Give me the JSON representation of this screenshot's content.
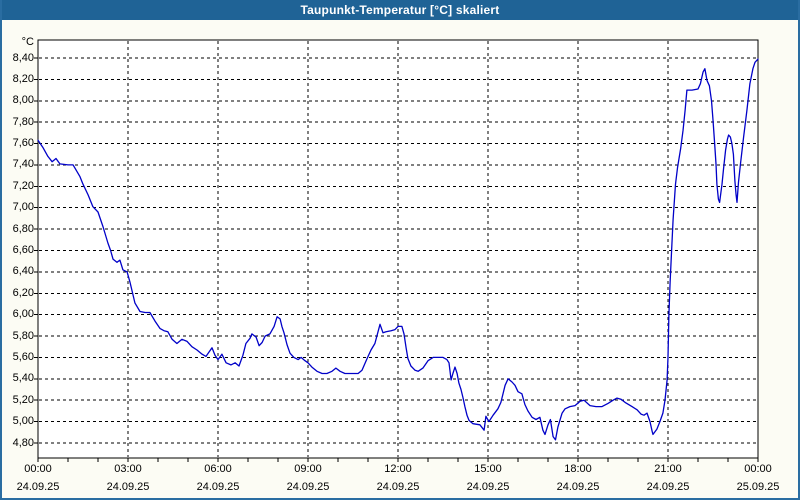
{
  "window": {
    "title": "Taupunkt-Temperatur [°C] skaliert"
  },
  "colors": {
    "titlebar_bg": "#1f6396",
    "titlebar_text": "#ffffff",
    "window_border": "#2a6da1",
    "content_bg": "#fcfcf4",
    "plot_bg": "#ffffff",
    "line": "#0101c8",
    "axis": "#000000",
    "grid": "#000000",
    "label_text": "#000000"
  },
  "chart_data": {
    "type": "line",
    "title": "Taupunkt-Temperatur [°C] skaliert",
    "unit_label": "°C",
    "xlabel": "",
    "ylabel": "°C",
    "ylim": [
      4.8,
      8.4
    ],
    "y_tick_step": 0.2,
    "y_tick_labels": [
      "8,40",
      "8,20",
      "8,00",
      "7,80",
      "7,60",
      "7,40",
      "7,20",
      "7,00",
      "6,80",
      "6,60",
      "6,40",
      "6,20",
      "6,00",
      "5,80",
      "5,60",
      "5,40",
      "5,20",
      "5,00",
      "4,80"
    ],
    "xlim_hours": [
      0,
      24
    ],
    "x_minor_tick_hours": 1,
    "x_major_ticks": [
      {
        "hour": 0,
        "time": "00:00",
        "date": "24.09.25"
      },
      {
        "hour": 3,
        "time": "03:00",
        "date": "24.09.25"
      },
      {
        "hour": 6,
        "time": "06:00",
        "date": "24.09.25"
      },
      {
        "hour": 9,
        "time": "09:00",
        "date": "24.09.25"
      },
      {
        "hour": 12,
        "time": "12:00",
        "date": "24.09.25"
      },
      {
        "hour": 15,
        "time": "15:00",
        "date": "24.09.25"
      },
      {
        "hour": 18,
        "time": "18:00",
        "date": "24.09.25"
      },
      {
        "hour": 21,
        "time": "21:00",
        "date": "24.09.25"
      },
      {
        "hour": 24,
        "time": "00:00",
        "date": "25.09.25"
      }
    ],
    "grid": "dashed",
    "legend": "none",
    "series": [
      {
        "name": "Taupunkt-Temperatur",
        "points": [
          [
            0.0,
            7.63
          ],
          [
            0.17,
            7.56
          ],
          [
            0.33,
            7.48
          ],
          [
            0.47,
            7.43
          ],
          [
            0.6,
            7.46
          ],
          [
            0.73,
            7.41
          ],
          [
            1.0,
            7.4
          ],
          [
            1.17,
            7.4
          ],
          [
            1.4,
            7.29
          ],
          [
            1.5,
            7.22
          ],
          [
            1.67,
            7.12
          ],
          [
            1.83,
            7.01
          ],
          [
            2.0,
            6.96
          ],
          [
            2.17,
            6.82
          ],
          [
            2.33,
            6.67
          ],
          [
            2.42,
            6.6
          ],
          [
            2.5,
            6.52
          ],
          [
            2.63,
            6.49
          ],
          [
            2.73,
            6.51
          ],
          [
            2.83,
            6.42
          ],
          [
            2.97,
            6.4
          ],
          [
            3.07,
            6.3
          ],
          [
            3.23,
            6.11
          ],
          [
            3.4,
            6.03
          ],
          [
            3.57,
            6.02
          ],
          [
            3.73,
            6.02
          ],
          [
            3.9,
            5.94
          ],
          [
            4.07,
            5.87
          ],
          [
            4.2,
            5.85
          ],
          [
            4.33,
            5.84
          ],
          [
            4.47,
            5.77
          ],
          [
            4.63,
            5.73
          ],
          [
            4.8,
            5.77
          ],
          [
            4.97,
            5.75
          ],
          [
            5.13,
            5.7
          ],
          [
            5.3,
            5.67
          ],
          [
            5.47,
            5.63
          ],
          [
            5.6,
            5.61
          ],
          [
            5.8,
            5.69
          ],
          [
            5.9,
            5.62
          ],
          [
            6.0,
            5.58
          ],
          [
            6.13,
            5.63
          ],
          [
            6.27,
            5.55
          ],
          [
            6.43,
            5.53
          ],
          [
            6.57,
            5.55
          ],
          [
            6.7,
            5.52
          ],
          [
            6.83,
            5.62
          ],
          [
            6.93,
            5.73
          ],
          [
            7.07,
            5.78
          ],
          [
            7.13,
            5.82
          ],
          [
            7.27,
            5.79
          ],
          [
            7.37,
            5.71
          ],
          [
            7.47,
            5.74
          ],
          [
            7.57,
            5.8
          ],
          [
            7.73,
            5.82
          ],
          [
            7.87,
            5.89
          ],
          [
            7.97,
            5.98
          ],
          [
            8.07,
            5.96
          ],
          [
            8.13,
            5.89
          ],
          [
            8.2,
            5.83
          ],
          [
            8.3,
            5.72
          ],
          [
            8.4,
            5.64
          ],
          [
            8.53,
            5.6
          ],
          [
            8.67,
            5.58
          ],
          [
            8.77,
            5.6
          ],
          [
            8.9,
            5.57
          ],
          [
            9.0,
            5.55
          ],
          [
            9.13,
            5.51
          ],
          [
            9.3,
            5.47
          ],
          [
            9.47,
            5.45
          ],
          [
            9.63,
            5.45
          ],
          [
            9.8,
            5.47
          ],
          [
            9.93,
            5.5
          ],
          [
            10.07,
            5.47
          ],
          [
            10.23,
            5.45
          ],
          [
            10.5,
            5.45
          ],
          [
            10.67,
            5.45
          ],
          [
            10.8,
            5.48
          ],
          [
            10.97,
            5.59
          ],
          [
            11.1,
            5.67
          ],
          [
            11.23,
            5.73
          ],
          [
            11.4,
            5.91
          ],
          [
            11.5,
            5.83
          ],
          [
            11.6,
            5.84
          ],
          [
            11.77,
            5.85
          ],
          [
            11.9,
            5.86
          ],
          [
            12.0,
            5.89
          ],
          [
            12.13,
            5.89
          ],
          [
            12.2,
            5.82
          ],
          [
            12.27,
            5.69
          ],
          [
            12.33,
            5.59
          ],
          [
            12.43,
            5.52
          ],
          [
            12.57,
            5.48
          ],
          [
            12.67,
            5.47
          ],
          [
            12.83,
            5.5
          ],
          [
            13.0,
            5.57
          ],
          [
            13.17,
            5.6
          ],
          [
            13.33,
            5.6
          ],
          [
            13.5,
            5.6
          ],
          [
            13.63,
            5.58
          ],
          [
            13.7,
            5.55
          ],
          [
            13.77,
            5.39
          ],
          [
            13.83,
            5.45
          ],
          [
            13.9,
            5.51
          ],
          [
            13.97,
            5.45
          ],
          [
            14.03,
            5.36
          ],
          [
            14.1,
            5.3
          ],
          [
            14.17,
            5.22
          ],
          [
            14.23,
            5.14
          ],
          [
            14.3,
            5.06
          ],
          [
            14.37,
            5.01
          ],
          [
            14.5,
            4.98
          ],
          [
            14.73,
            4.97
          ],
          [
            14.87,
            4.92
          ],
          [
            14.93,
            5.05
          ],
          [
            15.03,
            5.0
          ],
          [
            15.17,
            5.06
          ],
          [
            15.33,
            5.12
          ],
          [
            15.43,
            5.18
          ],
          [
            15.57,
            5.34
          ],
          [
            15.67,
            5.4
          ],
          [
            15.8,
            5.37
          ],
          [
            15.9,
            5.34
          ],
          [
            16.0,
            5.28
          ],
          [
            16.13,
            5.26
          ],
          [
            16.23,
            5.16
          ],
          [
            16.33,
            5.1
          ],
          [
            16.47,
            5.04
          ],
          [
            16.6,
            5.02
          ],
          [
            16.73,
            5.04
          ],
          [
            16.83,
            4.92
          ],
          [
            16.9,
            4.88
          ],
          [
            17.0,
            4.97
          ],
          [
            17.08,
            5.02
          ],
          [
            17.17,
            4.86
          ],
          [
            17.25,
            4.83
          ],
          [
            17.33,
            4.95
          ],
          [
            17.47,
            5.08
          ],
          [
            17.57,
            5.12
          ],
          [
            17.73,
            5.14
          ],
          [
            17.9,
            5.15
          ],
          [
            18.07,
            5.19
          ],
          [
            18.2,
            5.2
          ],
          [
            18.4,
            5.15
          ],
          [
            18.6,
            5.14
          ],
          [
            18.8,
            5.14
          ],
          [
            19.0,
            5.17
          ],
          [
            19.17,
            5.2
          ],
          [
            19.3,
            5.22
          ],
          [
            19.43,
            5.21
          ],
          [
            19.57,
            5.18
          ],
          [
            19.8,
            5.14
          ],
          [
            19.97,
            5.11
          ],
          [
            20.1,
            5.07
          ],
          [
            20.2,
            5.06
          ],
          [
            20.3,
            5.08
          ],
          [
            20.4,
            5.0
          ],
          [
            20.47,
            4.91
          ],
          [
            20.5,
            4.88
          ],
          [
            20.63,
            4.93
          ],
          [
            20.73,
            5.0
          ],
          [
            20.83,
            5.08
          ],
          [
            20.9,
            5.2
          ],
          [
            20.97,
            5.39
          ],
          [
            21.0,
            5.6
          ],
          [
            21.03,
            6.0
          ],
          [
            21.07,
            6.3
          ],
          [
            21.12,
            6.6
          ],
          [
            21.17,
            6.89
          ],
          [
            21.25,
            7.22
          ],
          [
            21.32,
            7.38
          ],
          [
            21.42,
            7.55
          ],
          [
            21.5,
            7.72
          ],
          [
            21.57,
            7.91
          ],
          [
            21.63,
            8.1
          ],
          [
            21.8,
            8.1
          ],
          [
            22.0,
            8.11
          ],
          [
            22.08,
            8.16
          ],
          [
            22.17,
            8.27
          ],
          [
            22.23,
            8.3
          ],
          [
            22.3,
            8.19
          ],
          [
            22.38,
            8.14
          ],
          [
            22.45,
            8.0
          ],
          [
            22.5,
            7.82
          ],
          [
            22.55,
            7.62
          ],
          [
            22.6,
            7.41
          ],
          [
            22.63,
            7.22
          ],
          [
            22.68,
            7.08
          ],
          [
            22.72,
            7.05
          ],
          [
            22.8,
            7.22
          ],
          [
            22.85,
            7.36
          ],
          [
            22.92,
            7.54
          ],
          [
            22.98,
            7.64
          ],
          [
            23.02,
            7.68
          ],
          [
            23.08,
            7.66
          ],
          [
            23.13,
            7.6
          ],
          [
            23.18,
            7.5
          ],
          [
            23.23,
            7.25
          ],
          [
            23.27,
            7.12
          ],
          [
            23.3,
            7.05
          ],
          [
            23.35,
            7.24
          ],
          [
            23.42,
            7.42
          ],
          [
            23.52,
            7.66
          ],
          [
            23.63,
            7.91
          ],
          [
            23.73,
            8.16
          ],
          [
            23.83,
            8.3
          ],
          [
            23.9,
            8.36
          ],
          [
            24.0,
            8.39
          ]
        ]
      }
    ]
  }
}
